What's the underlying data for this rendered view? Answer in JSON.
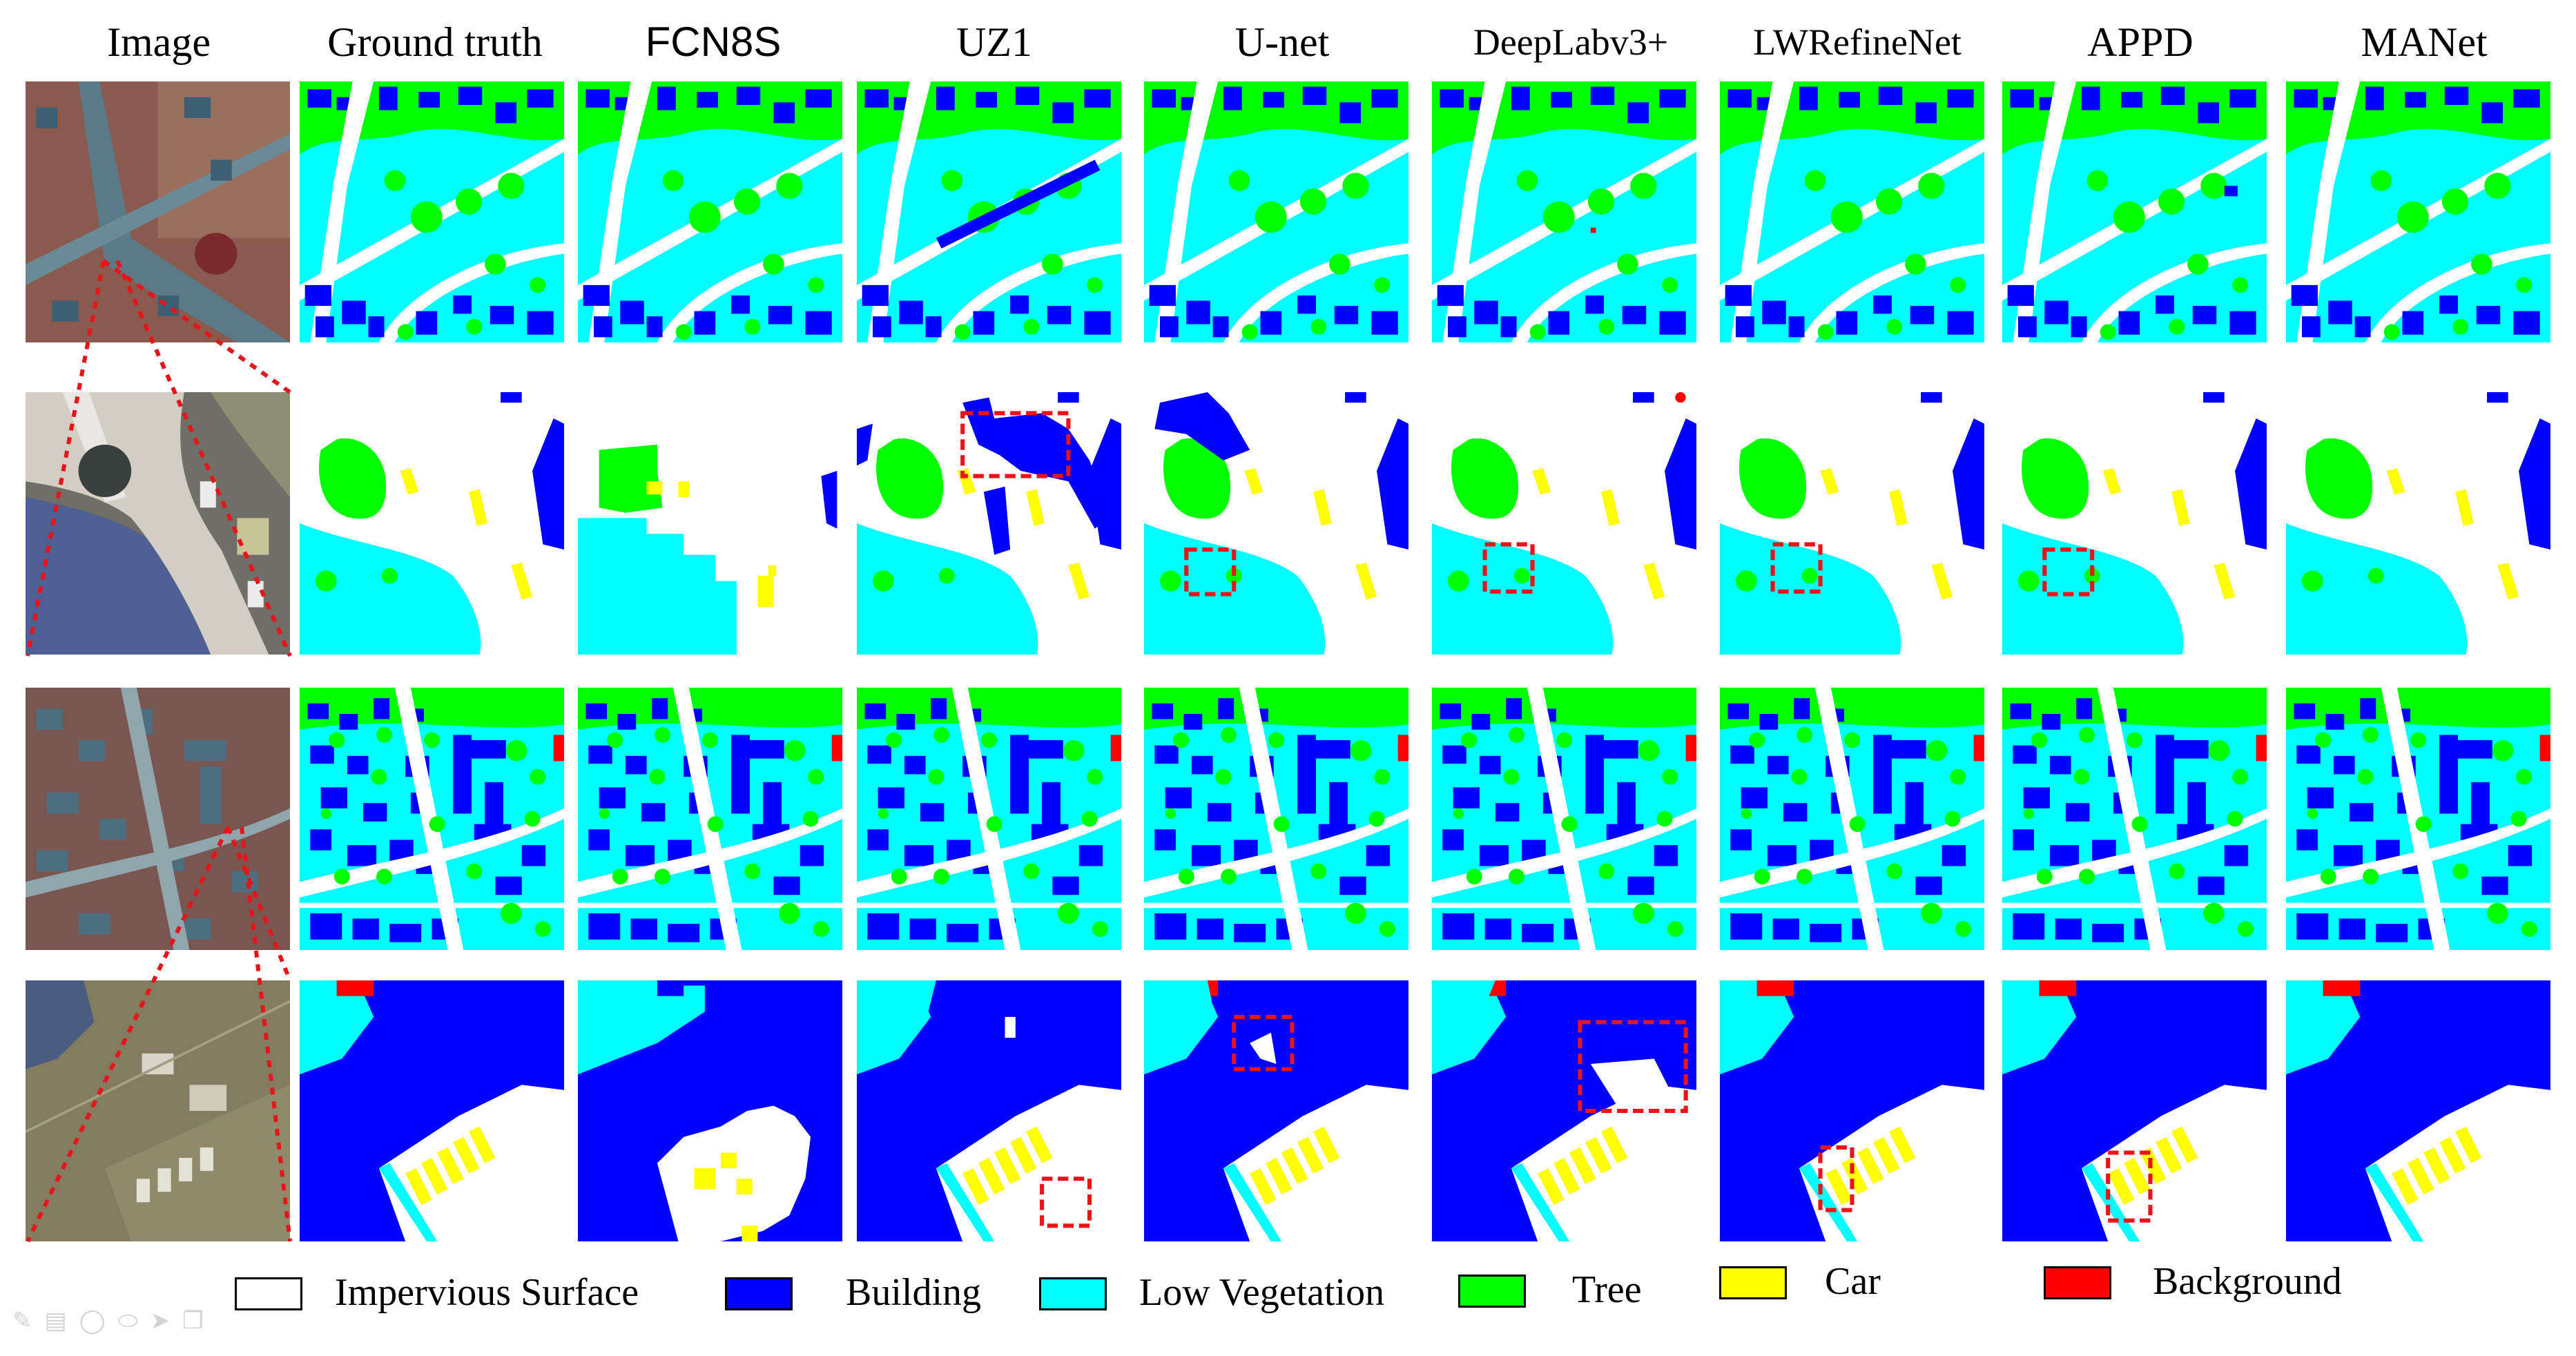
{
  "headers": [
    "Image",
    "Ground truth",
    "FCN8S",
    "UZ1",
    "U-net",
    "DeepLabv3+",
    "LWRefineNet",
    "APPD",
    "MANet"
  ],
  "legend": [
    {
      "label": "Impervious Surface",
      "color": "#FFFFFF",
      "icon": "impervious-surface-swatch"
    },
    {
      "label": "Building",
      "color": "#0000FF",
      "icon": "building-swatch"
    },
    {
      "label": "Low Vegetation",
      "color": "#00FFFF",
      "icon": "low-vegetation-swatch"
    },
    {
      "label": "Tree",
      "color": "#00FF00",
      "icon": "tree-swatch"
    },
    {
      "label": "Car",
      "color": "#FFFF00",
      "icon": "car-swatch"
    },
    {
      "label": "Background",
      "color": "#FF0000",
      "icon": "background-swatch"
    }
  ],
  "colors": {
    "impervious": "#FFFFFF",
    "building": "#0000FF",
    "low_vegetation": "#00FFFF",
    "tree": "#00FF00",
    "car": "#FFFF00",
    "background": "#FF0000",
    "highlight_box": "#E8141A",
    "zoom_line": "#E8141A"
  },
  "toolbar_icons": [
    "pen-icon",
    "highlighter-icon",
    "lasso-icon",
    "eraser-icon",
    "pointer-icon",
    "copy-icon"
  ]
}
